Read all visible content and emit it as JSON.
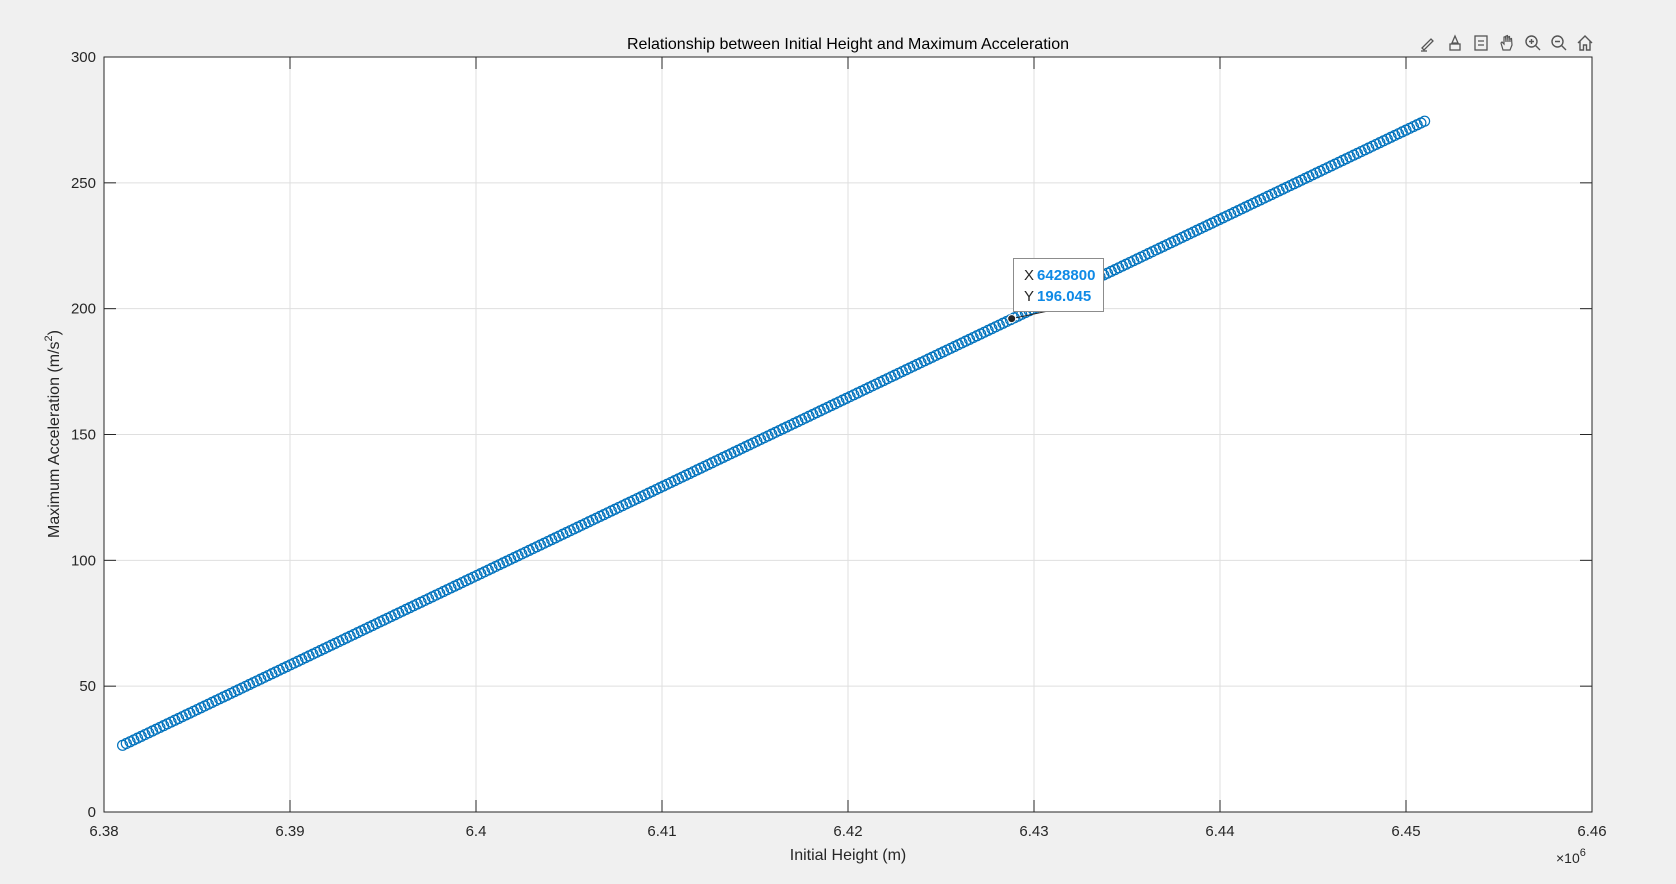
{
  "toolbar": {
    "icons": [
      "brush-icon",
      "data-tip-icon",
      "legend-icon",
      "pan-icon",
      "zoom-in-icon",
      "zoom-out-icon",
      "home-icon"
    ]
  },
  "datatip": {
    "x_label": "X",
    "x_value": "6428800",
    "y_label": "Y",
    "y_value": "196.045"
  },
  "chart_data": {
    "type": "scatter",
    "title": "Relationship between Initial Height and Maximum Acceleration",
    "xlabel": "Initial Height (m)",
    "ylabel_prefix": "Maximum Acceleration (m/s",
    "ylabel_sup": "2",
    "ylabel_suffix": ")",
    "x_exponent_base": "×10",
    "x_exponent_power": "6",
    "xlim": [
      6.38,
      6.46
    ],
    "ylim": [
      0,
      300
    ],
    "xticks": [
      "6.38",
      "6.39",
      "6.4",
      "6.41",
      "6.42",
      "6.43",
      "6.44",
      "6.45",
      "6.46"
    ],
    "yticks": [
      "0",
      "50",
      "100",
      "150",
      "200",
      "250",
      "300"
    ],
    "grid": true,
    "marker": "circle",
    "series_color": "#0072bd",
    "series": [
      {
        "x_start": 6.381,
        "x_end": 6.451,
        "y_start": 26.5,
        "y_end": 274.5,
        "points": 350
      }
    ],
    "highlight": {
      "x": 6.4288,
      "y": 196.045
    }
  }
}
